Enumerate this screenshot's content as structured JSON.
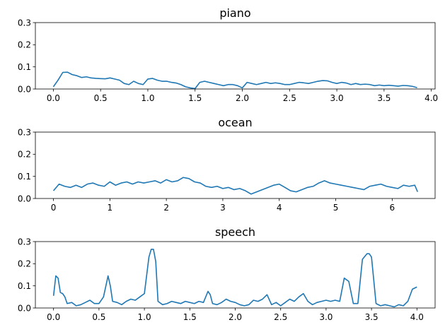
{
  "chart_data": [
    {
      "type": "line",
      "title": "piano",
      "xlabel": "",
      "ylabel": "",
      "xlim": [
        -0.19,
        4.04
      ],
      "ylim": [
        0,
        0.3
      ],
      "xticks": [
        0.0,
        0.5,
        1.0,
        1.5,
        2.0,
        2.5,
        3.0,
        3.5,
        4.0
      ],
      "xtick_labels": [
        "0.0",
        "0.5",
        "1.0",
        "1.5",
        "2.0",
        "2.5",
        "3.0",
        "3.5",
        "4.0"
      ],
      "yticks": [
        0.0,
        0.1,
        0.2,
        0.3
      ],
      "ytick_labels": [
        "0.0",
        "0.1",
        "0.2",
        "0.3"
      ],
      "grid": false,
      "color": "#1f77b4",
      "series": [
        {
          "x": [
            0.0,
            0.05,
            0.1,
            0.15,
            0.2,
            0.25,
            0.3,
            0.35,
            0.4,
            0.45,
            0.5,
            0.55,
            0.6,
            0.65,
            0.7,
            0.75,
            0.8,
            0.85,
            0.9,
            0.95,
            1.0,
            1.05,
            1.1,
            1.15,
            1.2,
            1.25,
            1.3,
            1.35,
            1.4,
            1.45,
            1.5,
            1.55,
            1.6,
            1.65,
            1.7,
            1.75,
            1.8,
            1.85,
            1.9,
            1.95,
            2.0,
            2.05,
            2.1,
            2.15,
            2.2,
            2.25,
            2.3,
            2.35,
            2.4,
            2.45,
            2.5,
            2.55,
            2.6,
            2.65,
            2.7,
            2.75,
            2.8,
            2.85,
            2.9,
            2.95,
            3.0,
            3.05,
            3.1,
            3.15,
            3.2,
            3.25,
            3.3,
            3.35,
            3.4,
            3.45,
            3.5,
            3.55,
            3.6,
            3.65,
            3.7,
            3.75,
            3.8,
            3.85
          ],
          "values": [
            0.01,
            0.04,
            0.075,
            0.076,
            0.065,
            0.06,
            0.052,
            0.055,
            0.05,
            0.048,
            0.047,
            0.046,
            0.05,
            0.045,
            0.04,
            0.025,
            0.02,
            0.035,
            0.025,
            0.02,
            0.045,
            0.048,
            0.04,
            0.035,
            0.035,
            0.03,
            0.027,
            0.02,
            0.01,
            0.005,
            0.002,
            0.03,
            0.035,
            0.03,
            0.025,
            0.02,
            0.015,
            0.02,
            0.02,
            0.015,
            0.005,
            0.03,
            0.025,
            0.02,
            0.025,
            0.03,
            0.025,
            0.028,
            0.025,
            0.02,
            0.02,
            0.025,
            0.03,
            0.028,
            0.025,
            0.03,
            0.035,
            0.038,
            0.037,
            0.03,
            0.025,
            0.03,
            0.027,
            0.02,
            0.025,
            0.02,
            0.022,
            0.02,
            0.015,
            0.018,
            0.015,
            0.017,
            0.015,
            0.013,
            0.016,
            0.015,
            0.012,
            0.006
          ]
        }
      ]
    },
    {
      "type": "line",
      "title": "ocean",
      "xlabel": "",
      "ylabel": "",
      "xlim": [
        -0.32,
        6.76
      ],
      "ylim": [
        0,
        0.3
      ],
      "xticks": [
        0,
        1,
        2,
        3,
        4,
        5,
        6
      ],
      "xtick_labels": [
        "0",
        "1",
        "2",
        "3",
        "4",
        "5",
        "6"
      ],
      "yticks": [
        0.0,
        0.1,
        0.2,
        0.3
      ],
      "ytick_labels": [
        "0.0",
        "0.1",
        "0.2",
        "0.3"
      ],
      "grid": false,
      "color": "#1f77b4",
      "series": [
        {
          "x": [
            0.0,
            0.1,
            0.2,
            0.3,
            0.4,
            0.5,
            0.6,
            0.7,
            0.8,
            0.9,
            1.0,
            1.1,
            1.2,
            1.3,
            1.4,
            1.5,
            1.6,
            1.7,
            1.8,
            1.9,
            2.0,
            2.1,
            2.2,
            2.3,
            2.4,
            2.5,
            2.6,
            2.7,
            2.8,
            2.9,
            3.0,
            3.1,
            3.2,
            3.3,
            3.4,
            3.5,
            3.6,
            3.7,
            3.8,
            3.9,
            4.0,
            4.1,
            4.2,
            4.3,
            4.4,
            4.5,
            4.6,
            4.7,
            4.8,
            4.9,
            5.0,
            5.1,
            5.2,
            5.3,
            5.4,
            5.5,
            5.6,
            5.7,
            5.8,
            5.9,
            6.0,
            6.1,
            6.2,
            6.3,
            6.4,
            6.45
          ],
          "values": [
            0.035,
            0.065,
            0.055,
            0.05,
            0.06,
            0.05,
            0.065,
            0.07,
            0.06,
            0.055,
            0.075,
            0.06,
            0.07,
            0.075,
            0.065,
            0.075,
            0.07,
            0.075,
            0.08,
            0.07,
            0.085,
            0.075,
            0.08,
            0.095,
            0.09,
            0.075,
            0.07,
            0.055,
            0.05,
            0.055,
            0.045,
            0.05,
            0.04,
            0.045,
            0.035,
            0.02,
            0.03,
            0.04,
            0.05,
            0.06,
            0.065,
            0.05,
            0.035,
            0.03,
            0.04,
            0.05,
            0.055,
            0.07,
            0.08,
            0.07,
            0.065,
            0.06,
            0.055,
            0.05,
            0.045,
            0.04,
            0.055,
            0.06,
            0.065,
            0.055,
            0.05,
            0.045,
            0.06,
            0.055,
            0.06,
            0.03
          ]
        }
      ]
    },
    {
      "type": "line",
      "title": "speech",
      "xlabel": "",
      "ylabel": "",
      "xlim": [
        -0.2,
        4.2
      ],
      "ylim": [
        0,
        0.3
      ],
      "xticks": [
        0.0,
        0.5,
        1.0,
        1.5,
        2.0,
        2.5,
        3.0,
        3.5,
        4.0
      ],
      "xtick_labels": [
        "0.0",
        "0.5",
        "1.0",
        "1.5",
        "2.0",
        "2.5",
        "3.0",
        "3.5",
        "4.0"
      ],
      "yticks": [
        0.0,
        0.1,
        0.2,
        0.3
      ],
      "ytick_labels": [
        "0.0",
        "0.1",
        "0.2",
        "0.3"
      ],
      "grid": false,
      "color": "#1f77b4",
      "series": [
        {
          "x": [
            0.0,
            0.025,
            0.05,
            0.075,
            0.1,
            0.125,
            0.15,
            0.2,
            0.25,
            0.3,
            0.35,
            0.4,
            0.45,
            0.5,
            0.55,
            0.6,
            0.625,
            0.65,
            0.7,
            0.75,
            0.8,
            0.85,
            0.9,
            0.95,
            1.0,
            1.05,
            1.075,
            1.1,
            1.125,
            1.15,
            1.2,
            1.25,
            1.3,
            1.35,
            1.4,
            1.45,
            1.5,
            1.55,
            1.6,
            1.65,
            1.7,
            1.725,
            1.75,
            1.8,
            1.85,
            1.9,
            1.95,
            2.0,
            2.05,
            2.1,
            2.15,
            2.2,
            2.25,
            2.3,
            2.35,
            2.4,
            2.45,
            2.5,
            2.55,
            2.6,
            2.65,
            2.7,
            2.75,
            2.8,
            2.85,
            2.9,
            2.95,
            3.0,
            3.05,
            3.1,
            3.15,
            3.2,
            3.25,
            3.3,
            3.35,
            3.4,
            3.45,
            3.475,
            3.5,
            3.55,
            3.6,
            3.65,
            3.7,
            3.75,
            3.8,
            3.85,
            3.9,
            3.95,
            4.0
          ],
          "values": [
            0.055,
            0.145,
            0.135,
            0.07,
            0.065,
            0.05,
            0.02,
            0.025,
            0.01,
            0.015,
            0.025,
            0.035,
            0.02,
            0.02,
            0.05,
            0.145,
            0.1,
            0.03,
            0.025,
            0.015,
            0.03,
            0.04,
            0.035,
            0.05,
            0.065,
            0.23,
            0.265,
            0.265,
            0.21,
            0.03,
            0.015,
            0.02,
            0.03,
            0.025,
            0.02,
            0.03,
            0.025,
            0.02,
            0.03,
            0.025,
            0.075,
            0.06,
            0.02,
            0.015,
            0.025,
            0.04,
            0.03,
            0.025,
            0.015,
            0.01,
            0.015,
            0.035,
            0.03,
            0.04,
            0.06,
            0.015,
            0.025,
            0.01,
            0.025,
            0.04,
            0.03,
            0.05,
            0.065,
            0.03,
            0.015,
            0.025,
            0.03,
            0.035,
            0.03,
            0.035,
            0.03,
            0.135,
            0.12,
            0.02,
            0.02,
            0.22,
            0.245,
            0.245,
            0.23,
            0.02,
            0.01,
            0.015,
            0.01,
            0.005,
            0.015,
            0.01,
            0.03,
            0.085,
            0.095
          ]
        }
      ]
    }
  ]
}
